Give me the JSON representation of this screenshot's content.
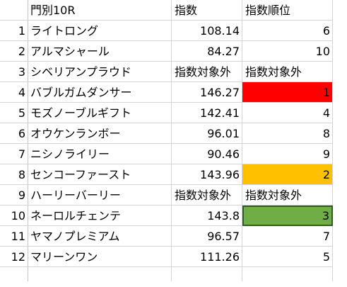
{
  "header": {
    "name": "門別10R",
    "index": "指数",
    "rank": "指数順位"
  },
  "rows": [
    {
      "num": "1",
      "name": "ライトロング",
      "index": "108.14",
      "rank": "6",
      "highlight": ""
    },
    {
      "num": "2",
      "name": "アルマシャール",
      "index": "84.27",
      "rank": "10",
      "highlight": ""
    },
    {
      "num": "3",
      "name": "シベリアンプラウド",
      "index": "指数対象外",
      "rank": "指数対象外",
      "highlight": ""
    },
    {
      "num": "4",
      "name": "バブルガムダンサー",
      "index": "146.27",
      "rank": "1",
      "highlight": "#ff0000"
    },
    {
      "num": "5",
      "name": "モズノーブルギフト",
      "index": "142.41",
      "rank": "4",
      "highlight": ""
    },
    {
      "num": "6",
      "name": "オウケンランボー",
      "index": "96.01",
      "rank": "8",
      "highlight": ""
    },
    {
      "num": "7",
      "name": "ニシノライリー",
      "index": "90.46",
      "rank": "9",
      "highlight": ""
    },
    {
      "num": "8",
      "name": "センコーファースト",
      "index": "143.96",
      "rank": "2",
      "highlight": "#ffc000"
    },
    {
      "num": "9",
      "name": "ハーリーバーリー",
      "index": "指数対象外",
      "rank": "指数対象外",
      "highlight": ""
    },
    {
      "num": "10",
      "name": "ネーロルチェンテ",
      "index": "143.8",
      "rank": "3",
      "highlight": "#70ad47"
    },
    {
      "num": "11",
      "name": "ヤマノプレミアム",
      "index": "96.57",
      "rank": "7",
      "highlight": ""
    },
    {
      "num": "12",
      "name": "マリーンワン",
      "index": "111.26",
      "rank": "5",
      "highlight": ""
    }
  ]
}
